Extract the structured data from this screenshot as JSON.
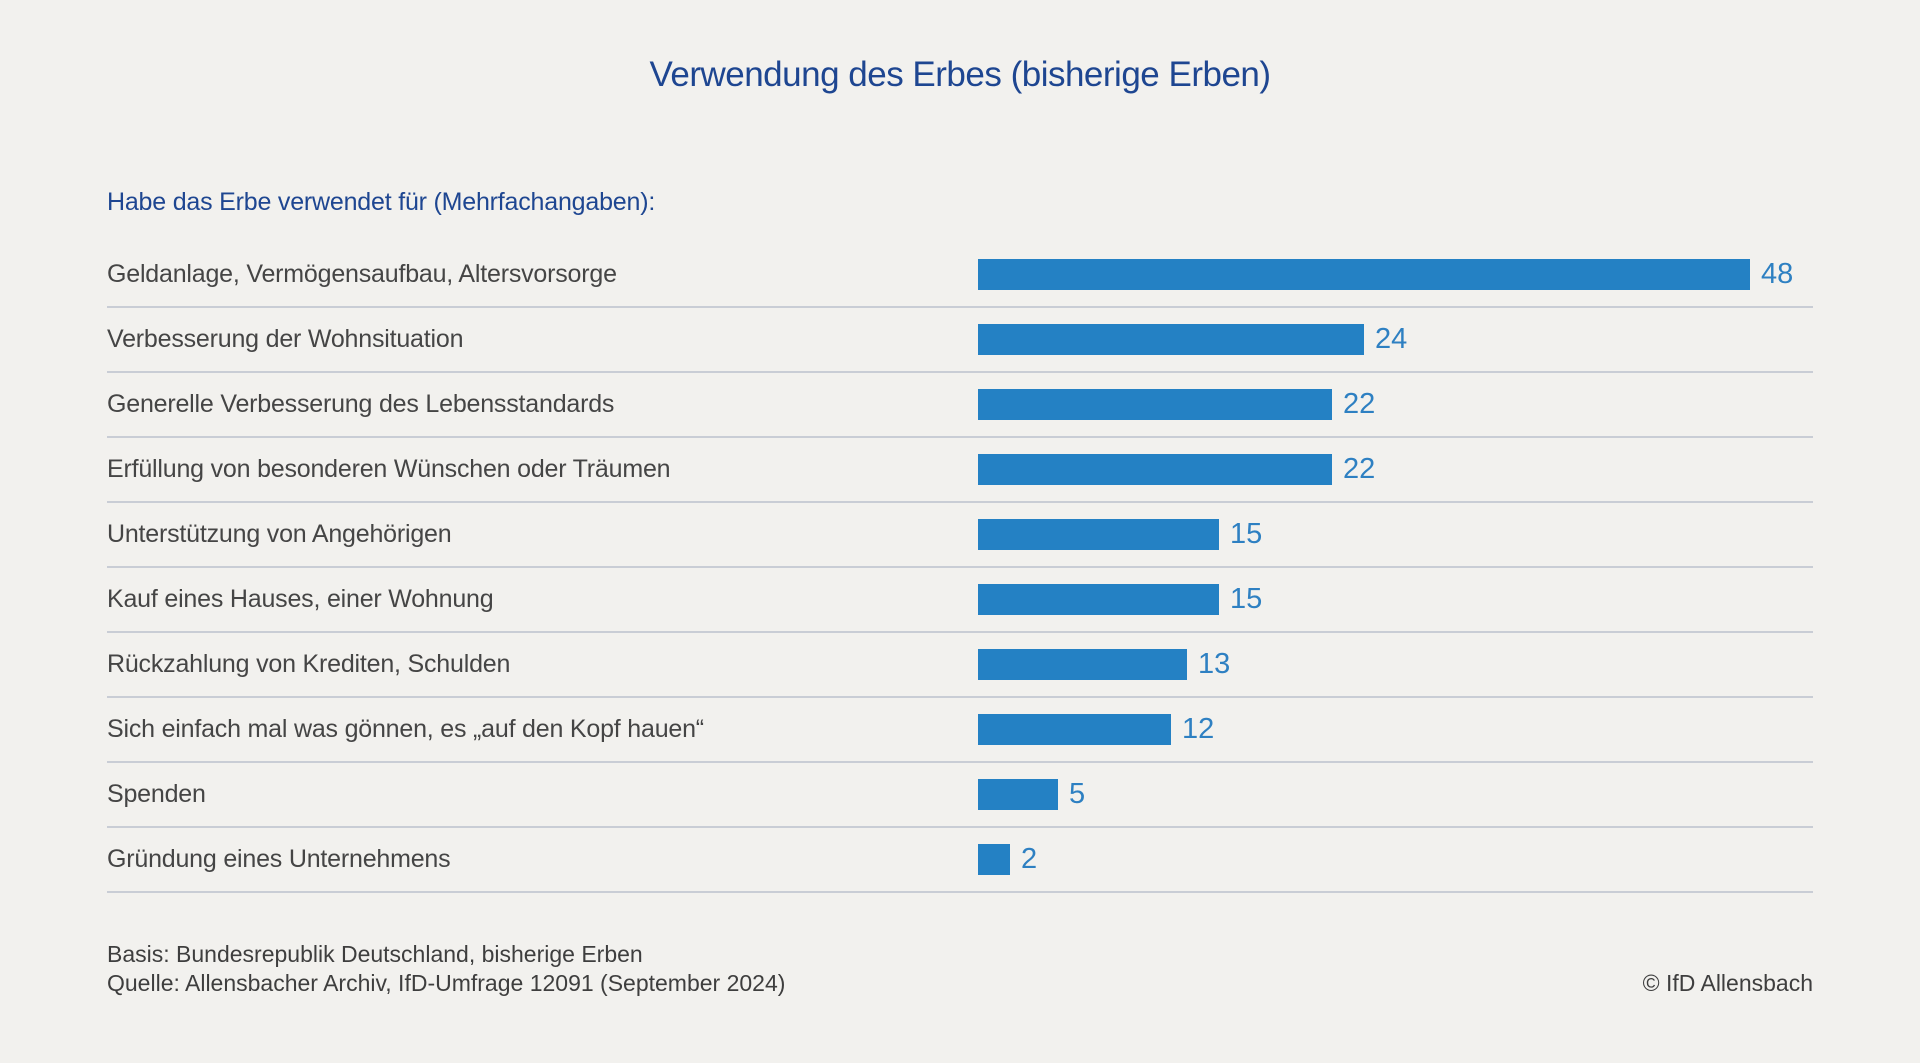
{
  "page": {
    "title": "Verwendung des Erbes (bisherige Erben)",
    "subtitle": "Habe das Erbe verwendet für (Mehrfachangaben):"
  },
  "colors": {
    "background": "#f2f1ee",
    "bar_blue": "#2481c4",
    "value_blue": "#2e80c2",
    "heading_blue": "#1e4691",
    "label_gray": "#454545",
    "separator_gray": "#c9cdd5"
  },
  "chart_data": {
    "type": "bar",
    "orientation": "horizontal",
    "title": "Verwendung des Erbes (bisherige Erben)",
    "question": "Habe das Erbe verwendet für (Mehrfachangaben):",
    "unit": "percent",
    "xlim": [
      0,
      50
    ],
    "grid": false,
    "legend": false,
    "categories": [
      "Geldanlage, Vermögensaufbau, Altersvorsorge",
      "Verbesserung der Wohnsituation",
      "Generelle Verbesserung des Lebensstandards",
      "Erfüllung von besonderen Wünschen oder Träumen",
      "Unterstützung von Angehörigen",
      "Kauf eines Hauses, einer Wohnung",
      "Rückzahlung von Krediten, Schulden",
      "Sich einfach mal was gönnen, es „auf den Kopf hauen“",
      "Spenden",
      "Gründung eines Unternehmens"
    ],
    "values": [
      48,
      24,
      22,
      22,
      15,
      15,
      13,
      12,
      5,
      2
    ]
  },
  "footer": {
    "basis": "Basis: Bundesrepublik Deutschland, bisherige Erben",
    "quelle": "Quelle: Allensbacher Archiv, IfD-Umfrage 12091 (September 2024)",
    "copyright": "© IfD Allensbach"
  }
}
